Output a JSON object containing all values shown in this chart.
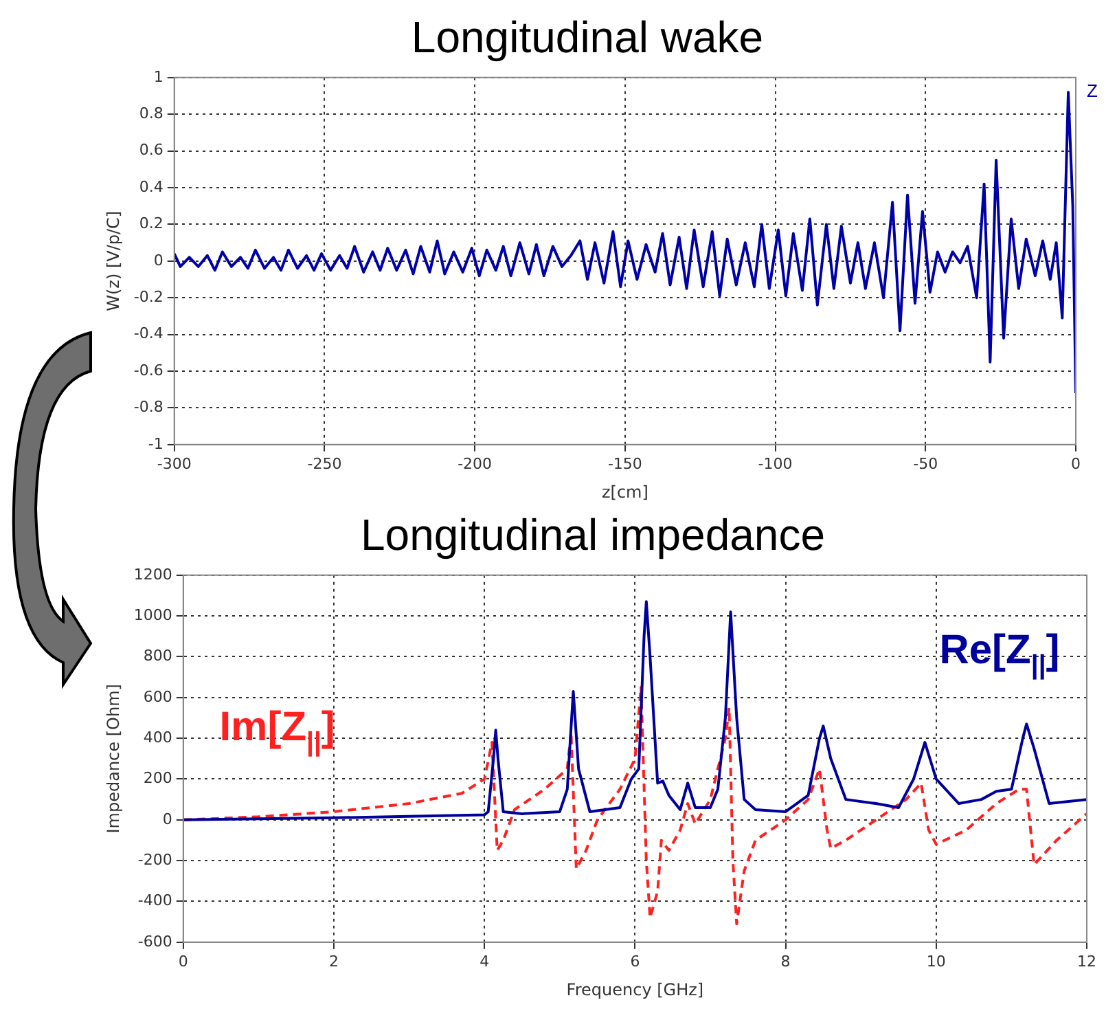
{
  "chart_data": [
    {
      "type": "line",
      "title": "Longitudinal wake",
      "xlabel": "z[cm]",
      "ylabel": "W(z) [V/p/C]",
      "xlim": [
        -300,
        0
      ],
      "xticks": [
        -300,
        -250,
        -200,
        -150,
        -100,
        -50,
        0
      ],
      "ylim": [
        -1,
        1
      ],
      "yticks": [
        -1,
        -0.8,
        -0.6,
        -0.4,
        -0.2,
        0,
        0.2,
        0.4,
        0.6,
        0.8,
        1
      ],
      "grid": true,
      "legend": "top right",
      "marker": "none",
      "line_style": "solid",
      "x": [
        -300,
        -298,
        -295,
        -292,
        -289,
        -286.5,
        -284,
        -281,
        -278,
        -275.5,
        -273,
        -270,
        -267,
        -264.5,
        -262,
        -259,
        -256,
        -253.5,
        -251,
        -248,
        -245,
        -242.5,
        -240,
        -237,
        -234,
        -231.5,
        -229,
        -226,
        -223,
        -220.5,
        -218,
        -215,
        -212.5,
        -210,
        -207,
        -204,
        -201,
        -198.5,
        -196,
        -193,
        -190.5,
        -188,
        -185,
        -182,
        -179.5,
        -177,
        -174,
        -171,
        -168,
        -165,
        -162.5,
        -160,
        -157,
        -154,
        -151.5,
        -149,
        -146,
        -143,
        -140,
        -137.5,
        -135,
        -132,
        -129.5,
        -127,
        -124,
        -121,
        -118.5,
        -116,
        -113,
        -110,
        -107,
        -104.5,
        -102,
        -99,
        -96.5,
        -94,
        -91,
        -88.5,
        -86,
        -83,
        -80.5,
        -78,
        -75,
        -72.5,
        -70,
        -67,
        -64,
        -61,
        -58.5,
        -56,
        -53.5,
        -51,
        -48.5,
        -46,
        -43.5,
        -41,
        -38.5,
        -36,
        -33,
        -30.5,
        -28.5,
        -26.5,
        -24,
        -21.5,
        -19,
        -16.5,
        -13.5,
        -11,
        -8.5,
        -6.5,
        -4.5,
        -2.5,
        -1,
        0
      ],
      "series": [
        {
          "name": "Z",
          "color": "#0000a8",
          "values": [
            0.04,
            -0.03,
            0.02,
            -0.03,
            0.03,
            -0.05,
            0.05,
            -0.03,
            0.02,
            -0.04,
            0.06,
            -0.04,
            0.02,
            -0.05,
            0.06,
            -0.04,
            0.03,
            -0.05,
            0.04,
            -0.05,
            0.03,
            -0.04,
            0.08,
            -0.06,
            0.05,
            -0.05,
            0.07,
            -0.05,
            0.06,
            -0.07,
            0.08,
            -0.06,
            0.11,
            -0.07,
            0.05,
            -0.06,
            0.07,
            -0.08,
            0.06,
            -0.05,
            0.08,
            -0.08,
            0.1,
            -0.07,
            0.09,
            -0.08,
            0.08,
            -0.03,
            0.03,
            0.11,
            -0.1,
            0.1,
            -0.12,
            0.16,
            -0.14,
            0.11,
            -0.1,
            0.09,
            -0.06,
            0.15,
            -0.13,
            0.13,
            -0.15,
            0.17,
            -0.14,
            0.16,
            -0.19,
            0.12,
            -0.13,
            0.1,
            -0.14,
            0.2,
            -0.15,
            0.17,
            -0.19,
            0.15,
            -0.16,
            0.23,
            -0.24,
            0.2,
            -0.15,
            0.19,
            -0.12,
            0.1,
            -0.15,
            0.1,
            -0.2,
            0.32,
            -0.38,
            0.36,
            -0.23,
            0.27,
            -0.17,
            0.05,
            -0.06,
            0.05,
            -0.01,
            0.08,
            -0.2,
            0.42,
            -0.55,
            0.55,
            -0.42,
            0.23,
            -0.15,
            0.12,
            -0.08,
            0.11,
            -0.1,
            0.1,
            -0.31,
            0.92,
            0.3,
            -0.72
          ]
        }
      ]
    },
    {
      "type": "line",
      "title": "Longitudinal impedance",
      "xlabel": "Frequency [GHz]",
      "ylabel": "Impedance [Ohm]",
      "xlim": [
        0,
        12
      ],
      "xticks": [
        0,
        2,
        4,
        6,
        8,
        10,
        12
      ],
      "ylim": [
        -600,
        1200
      ],
      "yticks": [
        -600,
        -400,
        -200,
        0,
        200,
        400,
        600,
        800,
        1000,
        1200
      ],
      "grid": true,
      "marker": "none",
      "series": [
        {
          "name": "Re[Z$_{||}$]",
          "color": "#00009c",
          "line_style": "solid",
          "x": [
            0,
            2,
            4,
            4.05,
            4.12,
            4.15,
            4.18,
            4.25,
            4.5,
            5,
            5.1,
            5.18,
            5.25,
            5.4,
            5.8,
            5.95,
            6.05,
            6.12,
            6.15,
            6.2,
            6.3,
            6.37,
            6.45,
            6.6,
            6.7,
            6.8,
            7,
            7.1,
            7.2,
            7.27,
            7.35,
            7.45,
            7.6,
            8,
            8.3,
            8.45,
            8.5,
            8.6,
            8.8,
            9.2,
            9.5,
            9.7,
            9.85,
            10,
            10.3,
            10.6,
            10.8,
            11,
            11.15,
            11.2,
            11.3,
            11.5,
            12
          ],
          "values": [
            0,
            10,
            25,
            40,
            300,
            440,
            300,
            40,
            30,
            40,
            150,
            630,
            250,
            40,
            60,
            200,
            250,
            900,
            1070,
            800,
            180,
            190,
            120,
            50,
            180,
            60,
            60,
            150,
            500,
            1020,
            500,
            100,
            50,
            40,
            120,
            400,
            460,
            300,
            100,
            80,
            60,
            200,
            380,
            200,
            80,
            100,
            140,
            150,
            400,
            470,
            350,
            80,
            100
          ]
        },
        {
          "name": "Im[Z$_{||}$]",
          "color": "#ff2020",
          "line_style": "dashed",
          "x": [
            0,
            1,
            2,
            3,
            3.7,
            4,
            4.1,
            4.17,
            4.25,
            4.4,
            4.8,
            5.1,
            5.15,
            5.22,
            5.35,
            5.5,
            5.8,
            6,
            6.08,
            6.15,
            6.2,
            6.3,
            6.35,
            6.45,
            6.6,
            6.7,
            6.8,
            7,
            7.2,
            7.25,
            7.3,
            7.35,
            7.45,
            7.6,
            8,
            8.3,
            8.45,
            8.55,
            8.6,
            8.8,
            9.2,
            9.6,
            9.8,
            9.9,
            10,
            10.4,
            10.8,
            11.1,
            11.2,
            11.3,
            11.6,
            12
          ],
          "values": [
            0,
            15,
            40,
            80,
            130,
            200,
            380,
            -150,
            -100,
            50,
            150,
            250,
            430,
            -240,
            -150,
            0,
            150,
            300,
            650,
            -200,
            -480,
            -350,
            -100,
            -150,
            -50,
            80,
            -20,
            100,
            400,
            550,
            -200,
            -510,
            -250,
            -100,
            0,
            100,
            250,
            -50,
            -140,
            -100,
            0,
            100,
            180,
            -50,
            -120,
            -50,
            80,
            150,
            150,
            -220,
            -100,
            30
          ]
        }
      ]
    }
  ]
}
